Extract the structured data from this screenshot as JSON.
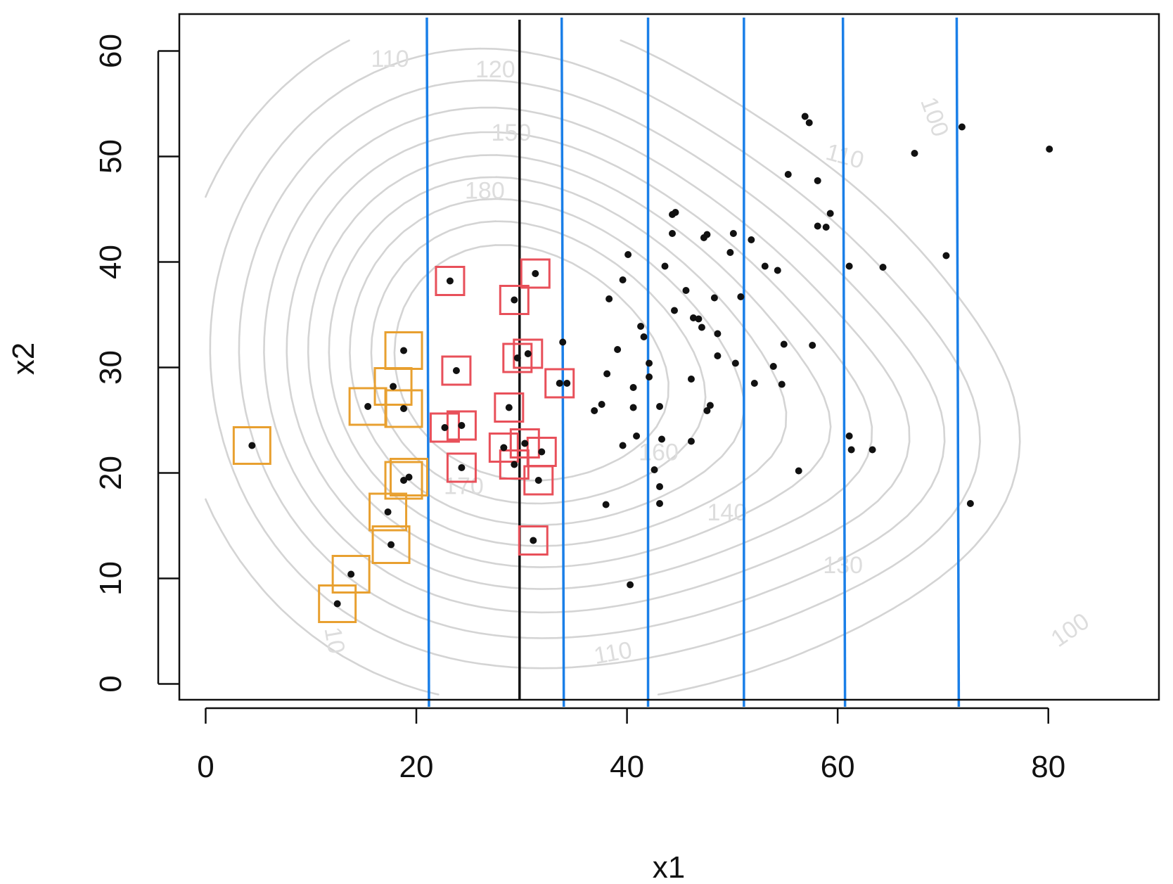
{
  "chart_data": {
    "type": "scatter",
    "title": "",
    "xlabel": "x1",
    "ylabel": "x2",
    "xlim": [
      -2.5,
      90.5
    ],
    "ylim": [
      -1.5,
      63.5
    ],
    "x_ticks": [
      0,
      20,
      40,
      60,
      80
    ],
    "y_ticks": [
      0,
      10,
      20,
      30,
      40,
      50,
      60
    ],
    "x_tick_labels": [
      "0",
      "20",
      "40",
      "60",
      "80"
    ],
    "y_tick_labels": [
      "0",
      "10",
      "20",
      "30",
      "40",
      "50",
      "60"
    ],
    "grid": false,
    "legend": "none",
    "colors": {
      "points": "#111111",
      "contour": "#d4d4d4",
      "contour_label": "#dddddd",
      "blue_lines": "#1a7fe8",
      "black_line": "#111111",
      "orange_boxes": "#e8a030",
      "red_boxes": "#e8505a"
    },
    "points": [
      [
        4.4,
        22.6
      ],
      [
        12.5,
        7.6
      ],
      [
        13.8,
        10.4
      ],
      [
        15.4,
        26.3
      ],
      [
        17.3,
        16.3
      ],
      [
        17.6,
        13.2
      ],
      [
        17.8,
        28.2
      ],
      [
        18.8,
        26.1
      ],
      [
        18.8,
        31.6
      ],
      [
        18.8,
        19.3
      ],
      [
        19.3,
        19.6
      ],
      [
        22.7,
        24.3
      ],
      [
        23.2,
        38.2
      ],
      [
        23.8,
        29.7
      ],
      [
        24.3,
        24.5
      ],
      [
        24.3,
        20.5
      ],
      [
        28.3,
        22.4
      ],
      [
        28.8,
        26.2
      ],
      [
        29.3,
        36.4
      ],
      [
        29.3,
        20.8
      ],
      [
        29.6,
        30.9
      ],
      [
        30.3,
        22.8
      ],
      [
        30.6,
        31.3
      ],
      [
        31.1,
        13.6
      ],
      [
        31.3,
        38.9
      ],
      [
        31.6,
        19.3
      ],
      [
        31.9,
        22.0
      ],
      [
        33.6,
        28.5
      ],
      [
        33.9,
        32.4
      ],
      [
        34.3,
        28.5
      ],
      [
        36.9,
        25.9
      ],
      [
        37.6,
        26.5
      ],
      [
        38.0,
        17.0
      ],
      [
        38.1,
        29.4
      ],
      [
        38.3,
        36.5
      ],
      [
        39.1,
        31.7
      ],
      [
        39.6,
        22.6
      ],
      [
        39.6,
        38.3
      ],
      [
        40.3,
        9.4
      ],
      [
        40.1,
        40.7
      ],
      [
        40.6,
        28.1
      ],
      [
        40.6,
        26.2
      ],
      [
        40.9,
        23.5
      ],
      [
        41.3,
        33.9
      ],
      [
        41.6,
        32.9
      ],
      [
        42.1,
        29.1
      ],
      [
        42.1,
        30.4
      ],
      [
        42.6,
        20.3
      ],
      [
        43.1,
        26.3
      ],
      [
        43.1,
        18.7
      ],
      [
        43.1,
        17.1
      ],
      [
        43.3,
        23.2
      ],
      [
        43.6,
        39.6
      ],
      [
        44.3,
        44.5
      ],
      [
        44.3,
        42.7
      ],
      [
        44.6,
        44.7
      ],
      [
        44.5,
        35.4
      ],
      [
        45.6,
        37.3
      ],
      [
        46.1,
        23.0
      ],
      [
        46.1,
        28.9
      ],
      [
        46.3,
        34.7
      ],
      [
        46.8,
        34.6
      ],
      [
        47.1,
        33.8
      ],
      [
        47.3,
        42.3
      ],
      [
        47.6,
        42.6
      ],
      [
        47.6,
        25.9
      ],
      [
        47.9,
        26.4
      ],
      [
        48.3,
        36.6
      ],
      [
        48.6,
        31.1
      ],
      [
        48.6,
        33.2
      ],
      [
        49.8,
        40.9
      ],
      [
        50.1,
        42.7
      ],
      [
        50.3,
        30.4
      ],
      [
        50.8,
        36.7
      ],
      [
        51.8,
        42.1
      ],
      [
        52.1,
        28.5
      ],
      [
        53.1,
        39.6
      ],
      [
        53.9,
        30.1
      ],
      [
        54.3,
        39.2
      ],
      [
        54.7,
        28.4
      ],
      [
        54.9,
        32.2
      ],
      [
        55.3,
        48.3
      ],
      [
        56.3,
        20.2
      ],
      [
        56.9,
        53.8
      ],
      [
        57.3,
        53.2
      ],
      [
        57.6,
        32.1
      ],
      [
        58.1,
        47.7
      ],
      [
        58.1,
        43.4
      ],
      [
        58.9,
        43.3
      ],
      [
        59.3,
        44.6
      ],
      [
        61.1,
        39.6
      ],
      [
        61.1,
        23.5
      ],
      [
        61.3,
        22.2
      ],
      [
        63.3,
        22.2
      ],
      [
        64.3,
        39.5
      ],
      [
        67.3,
        50.3
      ],
      [
        70.3,
        40.6
      ],
      [
        71.8,
        52.8
      ],
      [
        72.6,
        17.1
      ],
      [
        80.1,
        50.7
      ]
    ],
    "orange_boxed_points": [
      [
        4.4,
        22.6
      ],
      [
        12.5,
        7.6
      ],
      [
        13.8,
        10.4
      ],
      [
        15.4,
        26.3
      ],
      [
        17.3,
        16.3
      ],
      [
        17.6,
        13.2
      ],
      [
        17.8,
        28.2
      ],
      [
        18.8,
        26.1
      ],
      [
        18.8,
        31.6
      ],
      [
        18.8,
        19.3
      ],
      [
        19.3,
        19.6
      ]
    ],
    "red_boxed_points": [
      [
        22.7,
        24.3
      ],
      [
        23.2,
        38.2
      ],
      [
        23.8,
        29.7
      ],
      [
        24.3,
        24.5
      ],
      [
        24.3,
        20.5
      ],
      [
        28.3,
        22.4
      ],
      [
        28.8,
        26.2
      ],
      [
        29.3,
        36.4
      ],
      [
        29.3,
        20.8
      ],
      [
        29.6,
        30.9
      ],
      [
        30.3,
        22.8
      ],
      [
        30.6,
        31.3
      ],
      [
        31.1,
        13.6
      ],
      [
        31.3,
        38.9
      ],
      [
        31.6,
        19.3
      ],
      [
        31.9,
        22.0
      ],
      [
        33.6,
        28.5
      ]
    ],
    "blue_lines": [
      {
        "x_top": 21.0,
        "x_bottom": 21.2
      },
      {
        "x_top": 33.8,
        "x_bottom": 34.0
      },
      {
        "x_top": 42.0,
        "x_bottom": 42.0
      },
      {
        "x_top": 51.1,
        "x_bottom": 51.1
      },
      {
        "x_top": 60.5,
        "x_bottom": 60.7
      },
      {
        "x_top": 71.3,
        "x_bottom": 71.5
      }
    ],
    "black_line_x": 29.8,
    "contour_labels": [
      {
        "text": "110",
        "x": 17.5,
        "y": 58.5,
        "angle": 0
      },
      {
        "text": "120",
        "x": 27.5,
        "y": 57.5,
        "angle": 0
      },
      {
        "text": "150",
        "x": 29.0,
        "y": 51.5,
        "angle": 0
      },
      {
        "text": "180",
        "x": 26.5,
        "y": 46.0,
        "angle": 0
      },
      {
        "text": "100",
        "x": 68.5,
        "y": 53.5,
        "angle": 70
      },
      {
        "text": "110",
        "x": 60.5,
        "y": 49.3,
        "angle": 15
      },
      {
        "text": "160",
        "x": 43.0,
        "y": 21.2,
        "angle": 0
      },
      {
        "text": "170",
        "x": 24.5,
        "y": 18.0,
        "angle": 0
      },
      {
        "text": "140",
        "x": 49.5,
        "y": 15.5,
        "angle": 0
      },
      {
        "text": "130",
        "x": 60.5,
        "y": 10.5,
        "angle": 0
      },
      {
        "text": "110",
        "x": 38.8,
        "y": 2.2,
        "angle": -10
      },
      {
        "text": "10",
        "x": 11.5,
        "y": 4.0,
        "angle": 80
      },
      {
        "text": "100",
        "x": 82.5,
        "y": 4.5,
        "angle": -35
      }
    ]
  }
}
